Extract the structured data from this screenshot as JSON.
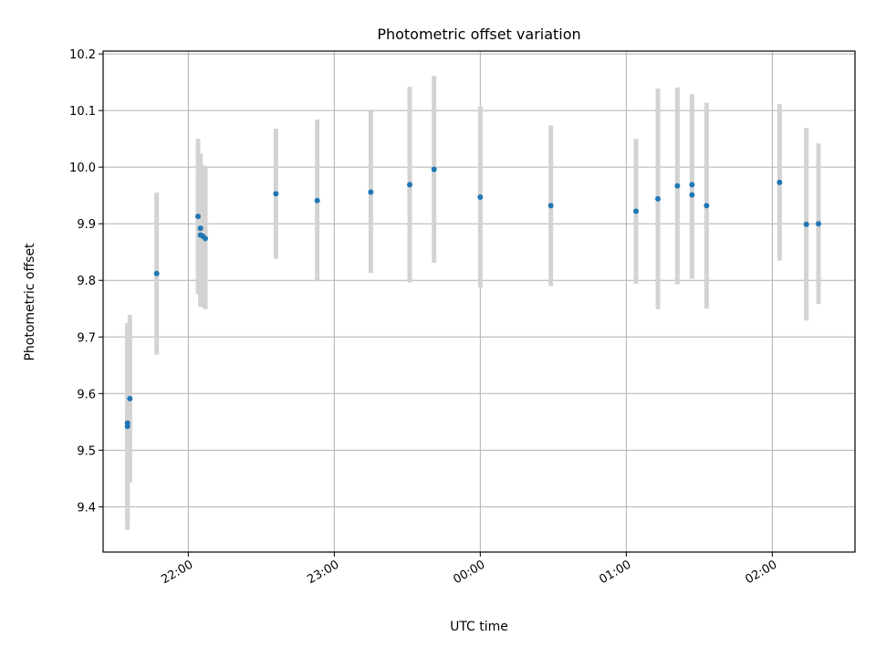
{
  "chart_data": {
    "type": "scatter",
    "title": "Photometric offset variation",
    "xlabel": "UTC time",
    "ylabel": "Photometric offset",
    "x_ticks": [
      "22:00",
      "23:00",
      "00:00",
      "01:00",
      "02:00"
    ],
    "y_ticks": [
      "9.4",
      "9.5",
      "9.6",
      "9.7",
      "9.8",
      "9.9",
      "10.0",
      "10.1",
      "10.2"
    ],
    "xlim": [
      "21:25",
      "02:34"
    ],
    "ylim": [
      9.32,
      10.205
    ],
    "grid": true,
    "errorbar_color": "#d3d3d3",
    "point_color": "#1f77b4",
    "series": [
      {
        "points": [
          {
            "x": "21:35",
            "y": 9.542,
            "err": 0.183
          },
          {
            "x": "21:35",
            "y": 9.548,
            "err": 0.175
          },
          {
            "x": "21:36",
            "y": 9.591,
            "err": 0.148
          },
          {
            "x": "21:47",
            "y": 9.812,
            "err": 0.143
          },
          {
            "x": "22:04",
            "y": 9.913,
            "err": 0.137
          },
          {
            "x": "22:05",
            "y": 9.892,
            "err": 0.132
          },
          {
            "x": "22:05",
            "y": 9.88,
            "err": 0.127
          },
          {
            "x": "22:06",
            "y": 9.878,
            "err": 0.125
          },
          {
            "x": "22:07",
            "y": 9.874,
            "err": 0.125
          },
          {
            "x": "22:36",
            "y": 9.953,
            "err": 0.115
          },
          {
            "x": "22:53",
            "y": 9.941,
            "err": 0.143
          },
          {
            "x": "23:15",
            "y": 9.956,
            "err": 0.143
          },
          {
            "x": "23:31",
            "y": 9.969,
            "err": 0.173
          },
          {
            "x": "23:41",
            "y": 9.996,
            "err": 0.165
          },
          {
            "x": "00:00",
            "y": 9.947,
            "err": 0.16
          },
          {
            "x": "00:29",
            "y": 9.932,
            "err": 0.142
          },
          {
            "x": "01:04",
            "y": 9.922,
            "err": 0.128
          },
          {
            "x": "01:13",
            "y": 9.944,
            "err": 0.195
          },
          {
            "x": "01:21",
            "y": 9.967,
            "err": 0.174
          },
          {
            "x": "01:27",
            "y": 9.969,
            "err": 0.16
          },
          {
            "x": "01:27",
            "y": 9.951,
            "err": 0.148
          },
          {
            "x": "01:33",
            "y": 9.932,
            "err": 0.182
          },
          {
            "x": "02:03",
            "y": 9.973,
            "err": 0.138
          },
          {
            "x": "02:14",
            "y": 9.899,
            "err": 0.17
          },
          {
            "x": "02:19",
            "y": 9.9,
            "err": 0.142
          }
        ]
      }
    ]
  }
}
